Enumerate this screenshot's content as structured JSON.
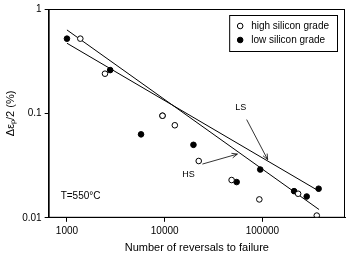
{
  "chart_data": {
    "type": "scatter",
    "x_label": "Number of reversals to failure",
    "y_label": "Δεₚ/2 (%)",
    "log": true,
    "grid": false,
    "legend": "upper right",
    "annotations": [
      "T=550°C"
    ],
    "xlim": [
      650,
      700000
    ],
    "xticks": [
      1000,
      10000,
      100000
    ],
    "ylim": [
      0.01,
      1
    ],
    "yticks": [
      0.01,
      0.1,
      1
    ],
    "series": [
      {
        "name": "high silicon grade",
        "color": "#000000",
        "marker": "open circle",
        "x": [
          1370,
          2450,
          9500,
          12700,
          22300,
          48400,
          93000,
          232000,
          360000
        ],
        "values": [
          0.52,
          0.24,
          0.095,
          0.077,
          0.035,
          0.023,
          0.015,
          0.017,
          0.0105
        ]
      },
      {
        "name": "low silicon grade",
        "color": "#000000",
        "marker": "filled circle",
        "x": [
          1000,
          2770,
          5730,
          9500,
          19700,
          54500,
          95000,
          211000,
          284000,
          376000
        ],
        "values": [
          0.52,
          0.26,
          0.063,
          0.095,
          0.05,
          0.022,
          0.029,
          0.018,
          0.016,
          0.019
        ]
      },
      {
        "name": "LS",
        "type": "line",
        "color": "#000000",
        "line_style": "solid",
        "x": [
          1000,
          380000
        ],
        "values": [
          0.47,
          0.018
        ]
      },
      {
        "name": "HS",
        "type": "line",
        "color": "#000000",
        "line_style": "solid",
        "x": [
          1000,
          380000
        ],
        "values": [
          0.63,
          0.012
        ]
      }
    ]
  }
}
